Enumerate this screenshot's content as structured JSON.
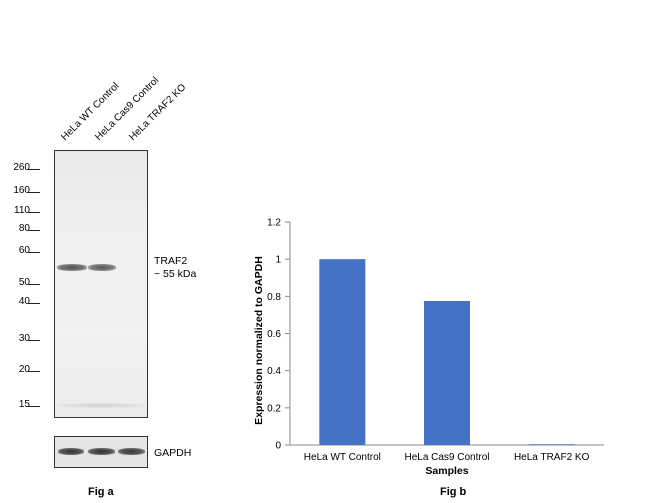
{
  "fig_a": {
    "caption": "Fig a",
    "lanes": [
      "HeLa WT Control",
      "HeLa Cas9 Control",
      "HeLa TRAF2 KO"
    ],
    "markers": [
      "260",
      "160",
      "110",
      "80",
      "60",
      "50",
      "40",
      "30",
      "20",
      "15"
    ],
    "target_label": "TRAF2",
    "target_size": "~ 55 kDa",
    "loading_control": "GAPDH"
  },
  "fig_b": {
    "caption": "Fig b"
  },
  "chart_data": {
    "type": "bar",
    "categories": [
      "HeLa WT Control",
      "HeLa Cas9 Control",
      "HeLa TRAF2 KO"
    ],
    "values": [
      1.0,
      0.775,
      0.004
    ],
    "xlabel": "Samples",
    "ylabel": "Expression normalized to GAPDH",
    "ylim": [
      0,
      1.2
    ],
    "yticks": [
      "0",
      "0.2",
      "0.4",
      "0.6",
      "0.8",
      "1",
      "1.2"
    ],
    "bar_color": "#4472C4",
    "grid": false
  }
}
